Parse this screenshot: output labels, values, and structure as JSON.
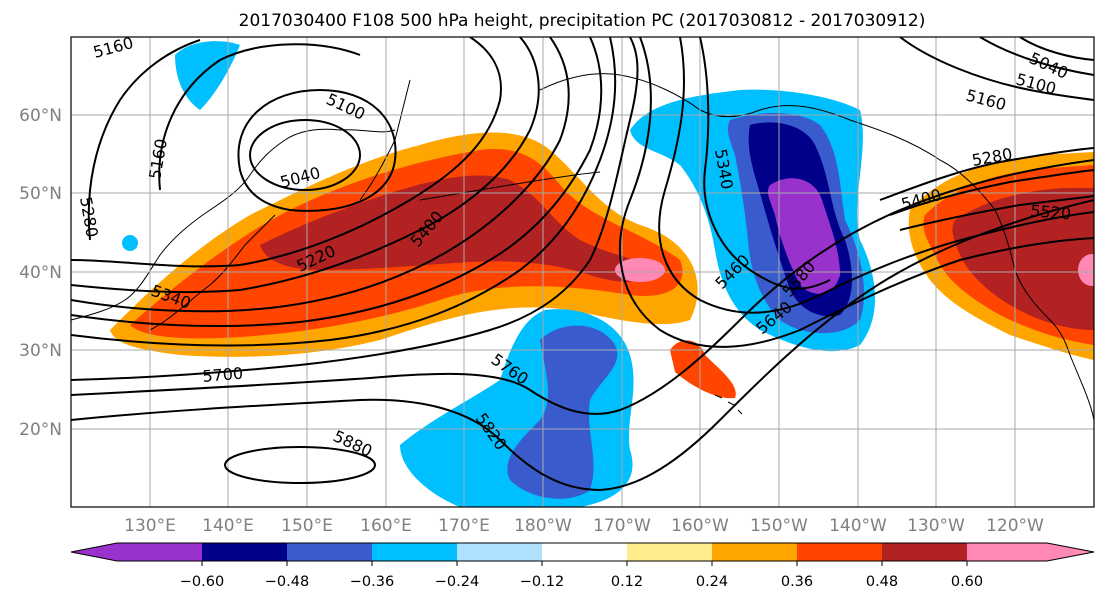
{
  "title": "2017030400 F108 500 hPa height, precipitation PC (2017030812 - 2017030912)",
  "map": {
    "lat_labels": [
      "60°N",
      "50°N",
      "40°N",
      "30°N",
      "20°N"
    ],
    "lon_labels": [
      "130°E",
      "140°E",
      "150°E",
      "160°E",
      "170°E",
      "180°W",
      "170°W",
      "160°W",
      "150°W",
      "140°W",
      "130°W",
      "120°W"
    ],
    "grid": true,
    "contour_labels": [
      "5160",
      "5100",
      "5040",
      "5160",
      "5280",
      "5220",
      "5340",
      "5400",
      "5700",
      "5760",
      "5820",
      "5880",
      "5340",
      "5460",
      "5580",
      "5640",
      "5280",
      "5400",
      "5520",
      "5040",
      "5100",
      "5160",
      "5280"
    ],
    "shading_colors": [
      "#9932cc",
      "#00008b",
      "#3a5bcc",
      "#00bfff",
      "#b0e2ff",
      "#ffffff",
      "#ffec8b",
      "#ffa500",
      "#ff4500",
      "#b22222",
      "#ff88b4"
    ]
  },
  "colorbar": {
    "ticks": [
      "−0.60",
      "−0.48",
      "−0.36",
      "−0.24",
      "−0.12",
      "0.12",
      "0.24",
      "0.36",
      "0.48",
      "0.60"
    ],
    "colors": [
      "#9932cc",
      "#00008b",
      "#3a5bcc",
      "#00bfff",
      "#b0e2ff",
      "#ffffff",
      "#ffec8b",
      "#ffa500",
      "#ff4500",
      "#b22222",
      "#ff88b4"
    ],
    "extend": "both"
  }
}
